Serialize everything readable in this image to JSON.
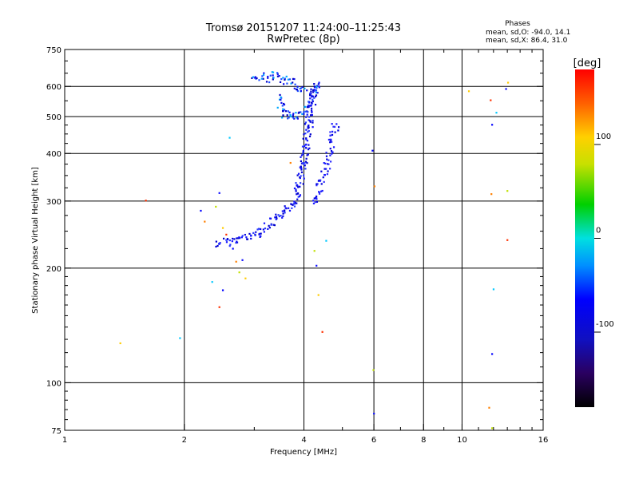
{
  "chart_data": {
    "type": "scatter",
    "title": "Tromsø 20151207 11:24:00–11:25:43",
    "subtitle": "RwPretec (8p)",
    "xlabel": "Frequency [MHz]",
    "ylabel": "Stationary phase Virtual Height [km]",
    "xscale": "log",
    "yscale": "log",
    "xlim": [
      1,
      16
    ],
    "ylim": [
      75,
      750
    ],
    "xticks": [
      1,
      2,
      4,
      6,
      8,
      10,
      16
    ],
    "xtick_labels": [
      "1",
      "2",
      "4",
      "6",
      "8",
      "10",
      "16"
    ],
    "yticks": [
      75,
      100,
      200,
      300,
      400,
      500,
      600,
      750
    ],
    "ytick_labels": [
      "75",
      "100",
      "200",
      "300",
      "400",
      "500",
      "600",
      "750"
    ],
    "grid": true,
    "stats": {
      "heading": "Phases",
      "line_o": "mean, sd,O: -94.0, 14.1",
      "line_x": "mean, sd,X:  86.4, 31.0"
    },
    "colorbar": {
      "label": "[deg]",
      "range": [
        -180,
        180
      ],
      "ticks": [
        100,
        0,
        -100
      ],
      "tick_labels": [
        "100",
        "0",
        "-100"
      ]
    },
    "series": [
      {
        "role": "o-mode trace",
        "points": [
          [
            2.45,
            232
          ],
          [
            2.55,
            234
          ],
          [
            2.65,
            236
          ],
          [
            2.75,
            238
          ],
          [
            2.85,
            240
          ],
          [
            2.95,
            243
          ],
          [
            3.05,
            247
          ],
          [
            3.15,
            252
          ],
          [
            3.25,
            258
          ],
          [
            3.35,
            264
          ],
          [
            3.45,
            270
          ],
          [
            3.55,
            277
          ],
          [
            3.65,
            285
          ],
          [
            3.72,
            293
          ],
          [
            3.78,
            302
          ],
          [
            3.83,
            312
          ],
          [
            3.87,
            322
          ],
          [
            3.9,
            333
          ],
          [
            3.93,
            345
          ],
          [
            3.96,
            358
          ],
          [
            3.98,
            372
          ],
          [
            4.0,
            386
          ],
          [
            4.02,
            400
          ],
          [
            4.04,
            415
          ],
          [
            4.06,
            430
          ],
          [
            4.08,
            446
          ],
          [
            4.1,
            462
          ],
          [
            4.12,
            478
          ],
          [
            4.14,
            494
          ],
          [
            4.16,
            510
          ],
          [
            4.18,
            526
          ],
          [
            4.2,
            542
          ],
          [
            4.22,
            558
          ],
          [
            4.24,
            574
          ],
          [
            4.26,
            590
          ],
          [
            4.28,
            606
          ]
        ]
      },
      {
        "role": "x-mode trace",
        "points": [
          [
            4.3,
            300
          ],
          [
            4.35,
            312
          ],
          [
            4.4,
            325
          ],
          [
            4.45,
            340
          ],
          [
            4.5,
            356
          ],
          [
            4.55,
            372
          ],
          [
            4.6,
            390
          ],
          [
            4.65,
            408
          ],
          [
            4.7,
            428
          ],
          [
            4.75,
            448
          ],
          [
            4.8,
            470
          ]
        ]
      },
      {
        "role": "upper cluster",
        "points": [
          [
            3.0,
            640
          ],
          [
            3.1,
            635
          ],
          [
            3.2,
            630
          ],
          [
            3.3,
            642
          ],
          [
            3.4,
            636
          ],
          [
            3.5,
            628
          ],
          [
            3.6,
            622
          ],
          [
            3.7,
            615
          ],
          [
            3.8,
            605
          ],
          [
            3.9,
            596
          ],
          [
            4.0,
            588
          ],
          [
            3.45,
            560
          ],
          [
            3.5,
            535
          ],
          [
            3.55,
            515
          ],
          [
            3.6,
            505
          ],
          [
            3.7,
            500
          ],
          [
            3.8,
            498
          ],
          [
            3.9,
            505
          ],
          [
            4.0,
            520
          ],
          [
            4.1,
            540
          ],
          [
            4.2,
            565
          ],
          [
            4.3,
            590
          ]
        ]
      },
      {
        "role": "scattered echoes",
        "points": [
          [
            1.38,
            127
          ],
          [
            1.6,
            301
          ],
          [
            1.95,
            131
          ],
          [
            2.2,
            283
          ],
          [
            2.25,
            265
          ],
          [
            2.4,
            290
          ],
          [
            2.45,
            315
          ],
          [
            2.5,
            255
          ],
          [
            2.55,
            245
          ],
          [
            2.6,
            440
          ],
          [
            2.65,
            225
          ],
          [
            2.7,
            208
          ],
          [
            2.75,
            195
          ],
          [
            2.8,
            210
          ],
          [
            2.85,
            188
          ],
          [
            2.45,
            158
          ],
          [
            2.35,
            184
          ],
          [
            2.5,
            175
          ],
          [
            3.7,
            378
          ],
          [
            4.25,
            222
          ],
          [
            4.3,
            203
          ],
          [
            4.35,
            170
          ],
          [
            4.45,
            136
          ],
          [
            4.55,
            236
          ],
          [
            5.95,
            407
          ],
          [
            6.02,
            328
          ],
          [
            5.98,
            108
          ],
          [
            6.0,
            83
          ],
          [
            10.4,
            583
          ],
          [
            11.8,
            552
          ],
          [
            12.2,
            512
          ],
          [
            11.9,
            476
          ],
          [
            11.85,
            313
          ],
          [
            13.0,
            319
          ],
          [
            12.9,
            591
          ],
          [
            13.05,
            614
          ],
          [
            13.0,
            237
          ],
          [
            12.0,
            176
          ],
          [
            11.9,
            119
          ],
          [
            11.7,
            86
          ],
          [
            11.9,
            76
          ]
        ]
      }
    ]
  }
}
